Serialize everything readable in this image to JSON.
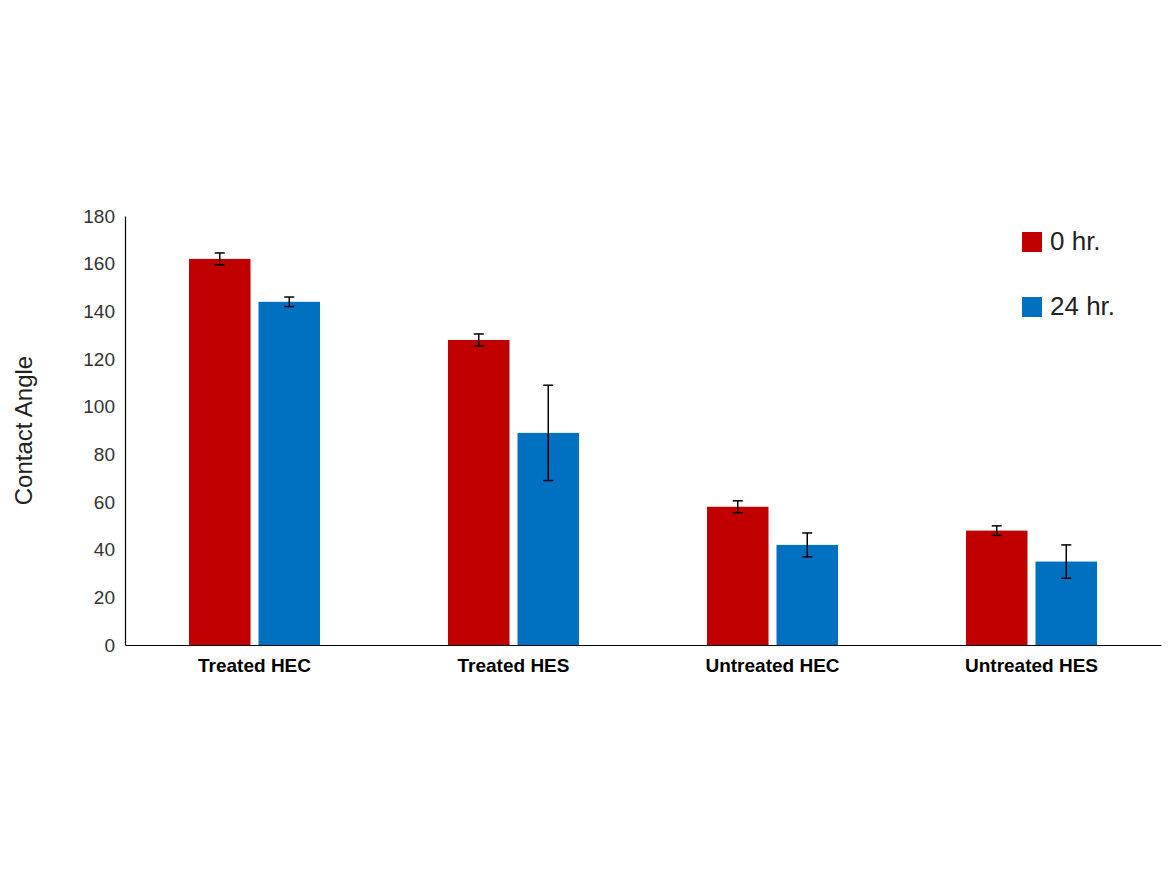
{
  "chart_data": {
    "type": "bar",
    "y_label": "Contact Angle",
    "categories": [
      "Treated HEC",
      "Treated HES",
      "Untreated HEC",
      "Untreated HES"
    ],
    "series": [
      {
        "name": "0 hr.",
        "color": "#c00000",
        "values": [
          162,
          128,
          58,
          48
        ],
        "errors": [
          2.5,
          2.5,
          2.5,
          2
        ]
      },
      {
        "name": "24 hr.",
        "color": "#0070c0",
        "values": [
          144,
          89,
          42,
          35
        ],
        "errors": [
          2,
          20,
          5,
          7
        ]
      }
    ],
    "ylim": [
      0,
      180
    ],
    "yticks": [
      0,
      20,
      40,
      60,
      80,
      100,
      120,
      140,
      160,
      180
    ],
    "grid": false,
    "legend": "upper right"
  }
}
